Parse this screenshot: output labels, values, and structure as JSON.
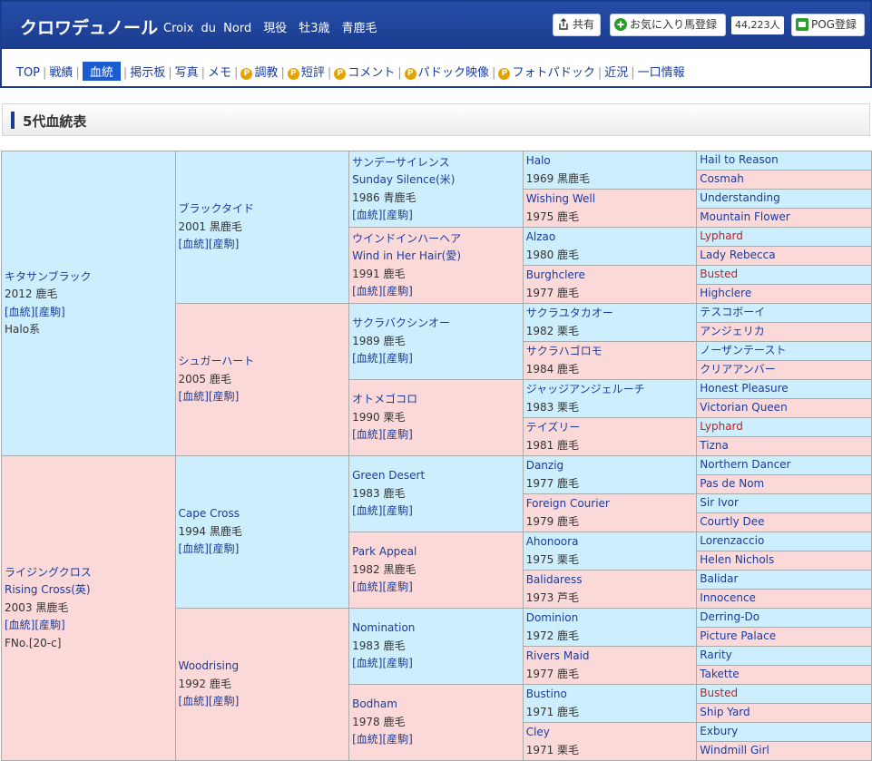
{
  "header": {
    "horse_name": "クロワデュノール",
    "subtitle": "Croix du Nord　現役　牡3歳　青鹿毛",
    "share_label": "共有",
    "favorite_label": "お気に入り馬登録",
    "favorite_count": "44,223人",
    "pog_label": "POG登録"
  },
  "nav": {
    "items": [
      {
        "label": "TOP",
        "paid": false,
        "active": false
      },
      {
        "label": "戦績",
        "paid": false,
        "active": false
      },
      {
        "label": "血統",
        "paid": false,
        "active": true
      },
      {
        "label": "掲示板",
        "paid": false,
        "active": false
      },
      {
        "label": "写真",
        "paid": false,
        "active": false
      },
      {
        "label": "メモ",
        "paid": false,
        "active": false
      },
      {
        "label": "調教",
        "paid": true,
        "active": false
      },
      {
        "label": "短評",
        "paid": true,
        "active": false
      },
      {
        "label": "コメント",
        "paid": true,
        "active": false
      },
      {
        "label": "パドック映像",
        "paid": true,
        "active": false
      },
      {
        "label": "フォトパドック",
        "paid": true,
        "active": false
      },
      {
        "label": "近況",
        "paid": false,
        "active": false
      },
      {
        "label": "一口情報",
        "paid": false,
        "active": false
      }
    ]
  },
  "section_title": "5代血統表",
  "pedigree": {
    "gen1": [
      {
        "name": "キタサンブラック",
        "eng": "",
        "info": "2012 鹿毛",
        "links": "[血統][産駒]",
        "extra": "Halo系",
        "sex": "m"
      },
      {
        "name": "ライジングクロス",
        "eng": "Rising Cross(英)",
        "info": "2003 黒鹿毛",
        "links": "[血統][産駒]",
        "extra": "FNo.[20-c]",
        "sex": "f"
      }
    ],
    "gen2": [
      {
        "name": "ブラックタイド",
        "info": "2001 黒鹿毛",
        "links": "[血統][産駒]",
        "sex": "m"
      },
      {
        "name": "シュガーハート",
        "info": "2005 鹿毛",
        "links": "[血統][産駒]",
        "sex": "f"
      },
      {
        "name": "Cape Cross",
        "info": "1994 黒鹿毛",
        "links": "[血統][産駒]",
        "sex": "m"
      },
      {
        "name": "Woodrising",
        "info": "1992 鹿毛",
        "links": "[血統][産駒]",
        "sex": "f"
      }
    ],
    "gen3": [
      {
        "name": "サンデーサイレンス",
        "eng": "Sunday Silence(米)",
        "info": "1986 青鹿毛",
        "links": "[血統][産駒]",
        "sex": "m"
      },
      {
        "name": "ウインドインハーヘア",
        "eng": "Wind in Her Hair(愛)",
        "info": "1991 鹿毛",
        "links": "[血統][産駒]",
        "sex": "f"
      },
      {
        "name": "サクラバクシンオー",
        "eng": "",
        "info": "1989 鹿毛",
        "links": "[血統][産駒]",
        "sex": "m"
      },
      {
        "name": "オトメゴコロ",
        "eng": "",
        "info": "1990 栗毛",
        "links": "[血統][産駒]",
        "sex": "f"
      },
      {
        "name": "Green Desert",
        "eng": "",
        "info": "1983 鹿毛",
        "links": "[血統][産駒]",
        "sex": "m"
      },
      {
        "name": "Park Appeal",
        "eng": "",
        "info": "1982 黒鹿毛",
        "links": "[血統][産駒]",
        "sex": "f"
      },
      {
        "name": "Nomination",
        "eng": "",
        "info": "1983 鹿毛",
        "links": "[血統][産駒]",
        "sex": "m"
      },
      {
        "name": "Bodham",
        "eng": "",
        "info": "1978 鹿毛",
        "links": "[血統][産駒]",
        "sex": "f"
      }
    ],
    "gen4": [
      {
        "name": "Halo",
        "info": "1969 黒鹿毛",
        "sex": "m"
      },
      {
        "name": "Wishing Well",
        "info": "1975 鹿毛",
        "sex": "f"
      },
      {
        "name": "Alzao",
        "info": "1980 鹿毛",
        "sex": "m"
      },
      {
        "name": "Burghclere",
        "info": "1977 鹿毛",
        "sex": "f"
      },
      {
        "name": "サクラユタカオー",
        "info": "1982 栗毛",
        "sex": "m"
      },
      {
        "name": "サクラハゴロモ",
        "info": "1984 鹿毛",
        "sex": "f"
      },
      {
        "name": "ジャッジアンジェルーチ",
        "info": "1983 栗毛",
        "sex": "m"
      },
      {
        "name": "テイズリー",
        "info": "1981 鹿毛",
        "sex": "f"
      },
      {
        "name": "Danzig",
        "info": "1977 鹿毛",
        "sex": "m"
      },
      {
        "name": "Foreign Courier",
        "info": "1979 鹿毛",
        "sex": "f"
      },
      {
        "name": "Ahonoora",
        "info": "1975 栗毛",
        "sex": "m"
      },
      {
        "name": "Balidaress",
        "info": "1973 芦毛",
        "sex": "f"
      },
      {
        "name": "Dominion",
        "info": "1972 鹿毛",
        "sex": "m"
      },
      {
        "name": "Rivers Maid",
        "info": "1977 鹿毛",
        "sex": "f"
      },
      {
        "name": "Bustino",
        "info": "1971 鹿毛",
        "sex": "m"
      },
      {
        "name": "Cley",
        "info": "1971 栗毛",
        "sex": "f"
      }
    ],
    "gen5": [
      {
        "name": "Hail to Reason",
        "sex": "m",
        "red": false
      },
      {
        "name": "Cosmah",
        "sex": "f",
        "red": false
      },
      {
        "name": "Understanding",
        "sex": "m",
        "red": false
      },
      {
        "name": "Mountain Flower",
        "sex": "f",
        "red": false
      },
      {
        "name": "Lyphard",
        "sex": "m",
        "red": true
      },
      {
        "name": "Lady Rebecca",
        "sex": "f",
        "red": false
      },
      {
        "name": "Busted",
        "sex": "m",
        "red": true
      },
      {
        "name": "Highclere",
        "sex": "f",
        "red": false
      },
      {
        "name": "テスコボーイ",
        "sex": "m",
        "red": false
      },
      {
        "name": "アンジェリカ",
        "sex": "f",
        "red": false
      },
      {
        "name": "ノーザンテースト",
        "sex": "m",
        "red": false
      },
      {
        "name": "クリアアンバー",
        "sex": "f",
        "red": false
      },
      {
        "name": "Honest Pleasure",
        "sex": "m",
        "red": false
      },
      {
        "name": "Victorian Queen",
        "sex": "f",
        "red": false
      },
      {
        "name": "Lyphard",
        "sex": "m",
        "red": true
      },
      {
        "name": "Tizna",
        "sex": "f",
        "red": false
      },
      {
        "name": "Northern Dancer",
        "sex": "m",
        "red": false
      },
      {
        "name": "Pas de Nom",
        "sex": "f",
        "red": false
      },
      {
        "name": "Sir Ivor",
        "sex": "m",
        "red": false
      },
      {
        "name": "Courtly Dee",
        "sex": "f",
        "red": false
      },
      {
        "name": "Lorenzaccio",
        "sex": "m",
        "red": false
      },
      {
        "name": "Helen Nichols",
        "sex": "f",
        "red": false
      },
      {
        "name": "Balidar",
        "sex": "m",
        "red": false
      },
      {
        "name": "Innocence",
        "sex": "f",
        "red": false
      },
      {
        "name": "Derring-Do",
        "sex": "m",
        "red": false
      },
      {
        "name": "Picture Palace",
        "sex": "f",
        "red": false
      },
      {
        "name": "Rarity",
        "sex": "m",
        "red": false
      },
      {
        "name": "Takette",
        "sex": "f",
        "red": false
      },
      {
        "name": "Busted",
        "sex": "m",
        "red": true
      },
      {
        "name": "Ship Yard",
        "sex": "f",
        "red": false
      },
      {
        "name": "Exbury",
        "sex": "m",
        "red": false
      },
      {
        "name": "Windmill Girl",
        "sex": "f",
        "red": false
      }
    ]
  }
}
